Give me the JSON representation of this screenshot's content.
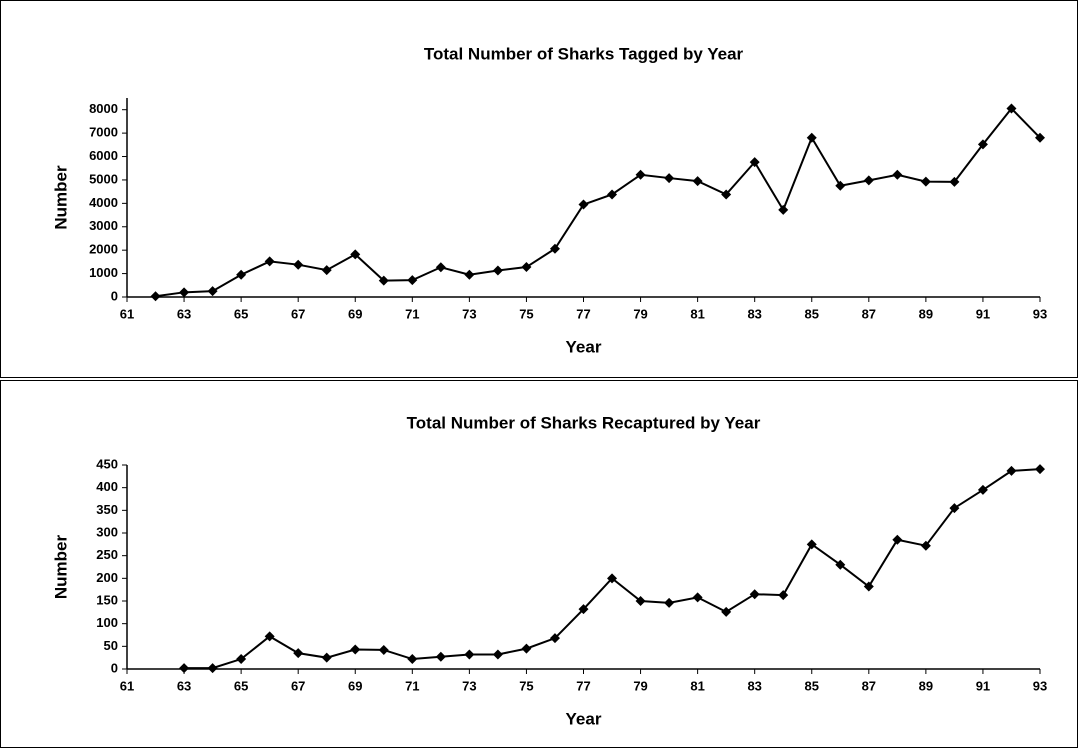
{
  "chart_data": [
    {
      "type": "line",
      "title": "Total Number of Sharks Tagged by Year",
      "x_label": "Year",
      "y_label": "Number",
      "color": "#000000",
      "x": [
        62,
        63,
        64,
        65,
        66,
        67,
        68,
        69,
        70,
        71,
        72,
        73,
        74,
        75,
        76,
        77,
        78,
        79,
        80,
        81,
        82,
        83,
        84,
        85,
        86,
        87,
        88,
        89,
        90,
        91,
        92,
        93
      ],
      "values": [
        30,
        200,
        250,
        950,
        1520,
        1380,
        1150,
        1820,
        700,
        720,
        1270,
        950,
        1130,
        1280,
        2060,
        3950,
        4380,
        5220,
        5080,
        4950,
        4380,
        5760,
        3720,
        6800,
        4750,
        4980,
        5220,
        4930,
        4920,
        6520,
        8050,
        6800
      ],
      "xlim": [
        61,
        93
      ],
      "xticks": [
        61,
        63,
        65,
        67,
        69,
        71,
        73,
        75,
        77,
        79,
        81,
        83,
        85,
        87,
        89,
        91,
        93
      ],
      "ylim": [
        0,
        8500
      ],
      "yticks": [
        0,
        1000,
        2000,
        3000,
        4000,
        5000,
        6000,
        7000,
        8000
      ]
    },
    {
      "type": "line",
      "title": "Total Number of Sharks Recaptured by Year",
      "x_label": "Year",
      "y_label": "Number",
      "color": "#000000",
      "x": [
        63,
        64,
        65,
        66,
        67,
        68,
        69,
        70,
        71,
        72,
        73,
        74,
        75,
        76,
        77,
        78,
        79,
        80,
        81,
        82,
        83,
        84,
        85,
        86,
        87,
        88,
        89,
        90,
        91,
        92,
        93
      ],
      "values": [
        2,
        2,
        22,
        72,
        35,
        25,
        43,
        42,
        22,
        27,
        32,
        32,
        45,
        68,
        132,
        200,
        150,
        146,
        158,
        126,
        165,
        163,
        275,
        230,
        182,
        285,
        272,
        355,
        395,
        437,
        441
      ],
      "xlim": [
        61,
        93
      ],
      "xticks": [
        61,
        63,
        65,
        67,
        69,
        71,
        73,
        75,
        77,
        79,
        81,
        83,
        85,
        87,
        89,
        91,
        93
      ],
      "ylim": [
        0,
        450
      ],
      "yticks": [
        0,
        50,
        100,
        150,
        200,
        250,
        300,
        350,
        400,
        450
      ]
    }
  ]
}
